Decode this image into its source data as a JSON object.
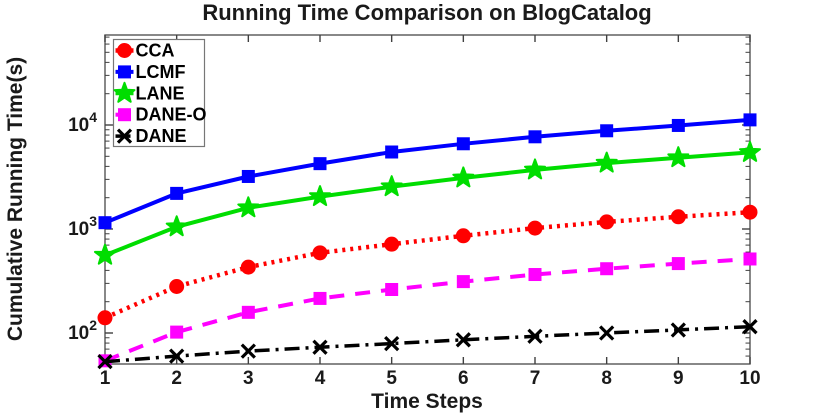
{
  "chart_data": {
    "type": "line",
    "title": "Running Time Comparison on BlogCatalog",
    "xlabel": "Time Steps",
    "ylabel": "Cumulative Running Time(s)",
    "yscale": "log",
    "xlim": [
      1,
      10
    ],
    "ylim": [
      51,
      73000
    ],
    "grid": false,
    "legend_position": "top-left",
    "xticks": [
      1,
      2,
      3,
      4,
      5,
      6,
      7,
      8,
      9,
      10
    ],
    "ytick_labels": [
      "10^2",
      "10^3",
      "10^4"
    ],
    "ytick_values": [
      100,
      1000,
      10000
    ],
    "x": [
      1,
      2,
      3,
      4,
      5,
      6,
      7,
      8,
      9,
      10
    ],
    "series": [
      {
        "name": "CCA",
        "color": "#ff0000",
        "line": "dotted",
        "marker": "circle",
        "values": [
          140,
          280,
          430,
          590,
          715,
          860,
          1020,
          1170,
          1310,
          1450
        ]
      },
      {
        "name": "LCMF",
        "color": "#0000ff",
        "line": "solid",
        "marker": "square",
        "values": [
          1150,
          2200,
          3200,
          4250,
          5500,
          6600,
          7700,
          8800,
          9900,
          11200
        ]
      },
      {
        "name": "LANE",
        "color": "#00dd00",
        "line": "solid",
        "marker": "star",
        "values": [
          560,
          1050,
          1600,
          2050,
          2550,
          3100,
          3700,
          4300,
          4850,
          5450
        ]
      },
      {
        "name": "DANE-O",
        "color": "#ff00ff",
        "line": "dashed",
        "marker": "square",
        "values": [
          54,
          102,
          158,
          215,
          262,
          312,
          365,
          415,
          465,
          515
        ]
      },
      {
        "name": "DANE",
        "color": "#000000",
        "line": "dashdot",
        "marker": "x",
        "values": [
          53,
          60,
          67,
          73,
          79,
          86,
          93,
          100,
          107,
          115
        ]
      }
    ],
    "colors": {
      "axis": "#404040",
      "text": "#1a1a1a",
      "background": "#ffffff"
    }
  }
}
